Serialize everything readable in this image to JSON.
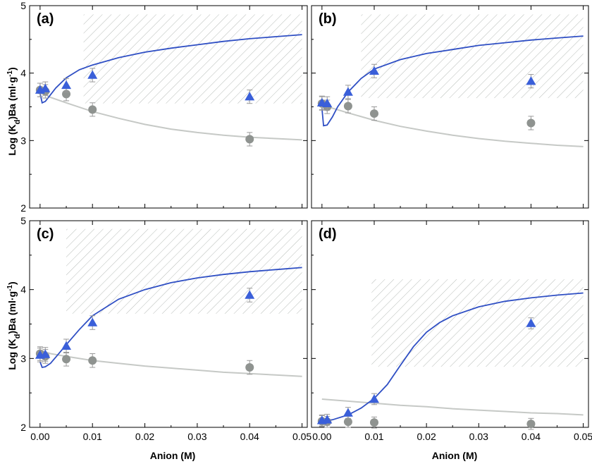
{
  "chart_data": {
    "type": "scatter",
    "xlabel": "Anion  (M)",
    "ylabel_main": "Log (K",
    "ylabel_sub": "d",
    "ylabel_post": ")Ba  (ml·g",
    "ylabel_sup": "-1",
    "ylabel_end": ")",
    "xlim": [
      -0.002,
      0.051
    ],
    "ylim": [
      2,
      5
    ],
    "x_ticks": [
      0.0,
      0.01,
      0.02,
      0.03,
      0.04,
      0.05
    ],
    "x_tick_labels": [
      "0.00",
      "0.01",
      "0.02",
      "0.03",
      "0.04",
      "0.05"
    ],
    "y_ticks": [
      2,
      3,
      4,
      5
    ],
    "y_tick_labels": [
      "2",
      "3",
      "4",
      "5"
    ],
    "colors": {
      "triangle": "#3a5fd9",
      "circle": "#8f9390",
      "curve_blue": "#2f4fc4",
      "curve_gray": "#c6c9c6",
      "hatch": "#b7bcb8"
    },
    "panels": [
      {
        "label": "(a)",
        "triangles": [
          [
            0.0,
            3.75
          ],
          [
            0.001,
            3.77
          ],
          [
            0.005,
            3.82
          ],
          [
            0.01,
            3.97
          ],
          [
            0.04,
            3.65
          ]
        ],
        "circles": [
          [
            0.0,
            3.75
          ],
          [
            0.001,
            3.73
          ],
          [
            0.005,
            3.69
          ],
          [
            0.01,
            3.46
          ],
          [
            0.04,
            3.02
          ]
        ],
        "error": 0.1,
        "blue_curve": [
          [
            0.0,
            3.7
          ],
          [
            0.0004,
            3.56
          ],
          [
            0.001,
            3.58
          ],
          [
            0.002,
            3.68
          ],
          [
            0.003,
            3.78
          ],
          [
            0.005,
            3.93
          ],
          [
            0.0075,
            4.05
          ],
          [
            0.01,
            4.12
          ],
          [
            0.015,
            4.23
          ],
          [
            0.02,
            4.31
          ],
          [
            0.025,
            4.37
          ],
          [
            0.03,
            4.42
          ],
          [
            0.035,
            4.47
          ],
          [
            0.04,
            4.51
          ],
          [
            0.045,
            4.54
          ],
          [
            0.05,
            4.57
          ]
        ],
        "gray_curve": [
          [
            0.0,
            3.72
          ],
          [
            0.002,
            3.64
          ],
          [
            0.005,
            3.56
          ],
          [
            0.01,
            3.43
          ],
          [
            0.015,
            3.33
          ],
          [
            0.02,
            3.24
          ],
          [
            0.025,
            3.17
          ],
          [
            0.03,
            3.12
          ],
          [
            0.035,
            3.08
          ],
          [
            0.04,
            3.05
          ],
          [
            0.045,
            3.03
          ],
          [
            0.05,
            3.01
          ]
        ],
        "hatch_x": [
          0.0083,
          0.05
        ],
        "hatch_y": [
          3.55,
          4.87
        ]
      },
      {
        "label": "(b)",
        "triangles": [
          [
            0.0,
            3.56
          ],
          [
            0.001,
            3.55
          ],
          [
            0.005,
            3.72
          ],
          [
            0.01,
            4.03
          ],
          [
            0.04,
            3.88
          ]
        ],
        "circles": [
          [
            0.0,
            3.55
          ],
          [
            0.001,
            3.5
          ],
          [
            0.005,
            3.51
          ],
          [
            0.01,
            3.4
          ],
          [
            0.04,
            3.26
          ]
        ],
        "error": 0.1,
        "blue_curve": [
          [
            0.0,
            3.48
          ],
          [
            0.0003,
            3.22
          ],
          [
            0.001,
            3.23
          ],
          [
            0.002,
            3.35
          ],
          [
            0.003,
            3.5
          ],
          [
            0.005,
            3.72
          ],
          [
            0.0075,
            3.92
          ],
          [
            0.01,
            4.06
          ],
          [
            0.015,
            4.2
          ],
          [
            0.02,
            4.29
          ],
          [
            0.025,
            4.35
          ],
          [
            0.03,
            4.41
          ],
          [
            0.035,
            4.45
          ],
          [
            0.04,
            4.49
          ],
          [
            0.045,
            4.52
          ],
          [
            0.05,
            4.55
          ]
        ],
        "gray_curve": [
          [
            0.0,
            3.55
          ],
          [
            0.002,
            3.48
          ],
          [
            0.005,
            3.41
          ],
          [
            0.01,
            3.3
          ],
          [
            0.015,
            3.21
          ],
          [
            0.02,
            3.14
          ],
          [
            0.025,
            3.08
          ],
          [
            0.03,
            3.03
          ],
          [
            0.035,
            2.99
          ],
          [
            0.04,
            2.96
          ],
          [
            0.045,
            2.93
          ],
          [
            0.05,
            2.91
          ]
        ],
        "hatch_x": [
          0.0075,
          0.05
        ],
        "hatch_y": [
          3.63,
          4.87
        ]
      },
      {
        "label": "(c)",
        "triangles": [
          [
            0.0,
            3.05
          ],
          [
            0.001,
            3.06
          ],
          [
            0.005,
            3.18
          ],
          [
            0.01,
            3.52
          ],
          [
            0.04,
            3.92
          ]
        ],
        "circles": [
          [
            0.0,
            3.07
          ],
          [
            0.001,
            3.03
          ],
          [
            0.005,
            2.99
          ],
          [
            0.01,
            2.97
          ],
          [
            0.04,
            2.87
          ]
        ],
        "error": 0.1,
        "blue_curve": [
          [
            0.0,
            2.95
          ],
          [
            0.0004,
            2.87
          ],
          [
            0.001,
            2.88
          ],
          [
            0.002,
            2.93
          ],
          [
            0.003,
            3.02
          ],
          [
            0.005,
            3.2
          ],
          [
            0.0075,
            3.42
          ],
          [
            0.01,
            3.62
          ],
          [
            0.015,
            3.86
          ],
          [
            0.02,
            4.0
          ],
          [
            0.025,
            4.1
          ],
          [
            0.03,
            4.17
          ],
          [
            0.035,
            4.22
          ],
          [
            0.04,
            4.26
          ],
          [
            0.045,
            4.29
          ],
          [
            0.05,
            4.32
          ]
        ],
        "gray_curve": [
          [
            0.0,
            3.12
          ],
          [
            0.002,
            3.07
          ],
          [
            0.005,
            3.03
          ],
          [
            0.01,
            2.97
          ],
          [
            0.015,
            2.93
          ],
          [
            0.02,
            2.89
          ],
          [
            0.025,
            2.86
          ],
          [
            0.03,
            2.83
          ],
          [
            0.035,
            2.8
          ],
          [
            0.04,
            2.78
          ],
          [
            0.045,
            2.76
          ],
          [
            0.05,
            2.74
          ]
        ],
        "hatch_x": [
          0.005,
          0.05
        ],
        "hatch_y": [
          3.65,
          4.88
        ]
      },
      {
        "label": "(d)",
        "triangles": [
          [
            0.0,
            2.1
          ],
          [
            0.001,
            2.11
          ],
          [
            0.005,
            2.21
          ],
          [
            0.01,
            2.41
          ],
          [
            0.04,
            3.51
          ]
        ],
        "circles": [
          [
            0.0,
            2.09
          ],
          [
            0.001,
            2.08
          ],
          [
            0.005,
            2.08
          ],
          [
            0.01,
            2.07
          ],
          [
            0.04,
            2.05
          ]
        ],
        "error": 0.08,
        "blue_curve": [
          [
            0.0,
            2.09
          ],
          [
            0.002,
            2.11
          ],
          [
            0.005,
            2.18
          ],
          [
            0.0075,
            2.28
          ],
          [
            0.01,
            2.42
          ],
          [
            0.0125,
            2.62
          ],
          [
            0.015,
            2.9
          ],
          [
            0.0175,
            3.17
          ],
          [
            0.02,
            3.38
          ],
          [
            0.0225,
            3.52
          ],
          [
            0.025,
            3.62
          ],
          [
            0.03,
            3.75
          ],
          [
            0.035,
            3.83
          ],
          [
            0.04,
            3.88
          ],
          [
            0.045,
            3.92
          ],
          [
            0.05,
            3.95
          ]
        ],
        "gray_curve": [
          [
            0.0,
            2.41
          ],
          [
            0.005,
            2.38
          ],
          [
            0.01,
            2.35
          ],
          [
            0.015,
            2.32
          ],
          [
            0.02,
            2.3
          ],
          [
            0.025,
            2.27
          ],
          [
            0.03,
            2.25
          ],
          [
            0.035,
            2.23
          ],
          [
            0.04,
            2.21
          ],
          [
            0.045,
            2.2
          ],
          [
            0.05,
            2.18
          ]
        ],
        "hatch_x": [
          0.0095,
          0.05
        ],
        "hatch_y": [
          2.88,
          4.15
        ]
      }
    ]
  }
}
